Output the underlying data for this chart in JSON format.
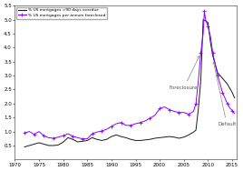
{
  "xlim": [
    1970,
    2016
  ],
  "ylim": [
    0.0,
    5.5
  ],
  "xticks": [
    1970,
    1975,
    1980,
    1985,
    1990,
    1995,
    2000,
    2005,
    2010,
    2015
  ],
  "ytick_vals": [
    0.5,
    1.0,
    1.5,
    2.0,
    2.5,
    3.0,
    3.5,
    4.0,
    4.5,
    5.0,
    5.5
  ],
  "ytick_labels": [
    "0.5",
    "1.0",
    "1.5",
    "2.0",
    "2.5",
    "3.0",
    "3.5",
    "4.0",
    "4.5",
    "5.0",
    "5.5"
  ],
  "legend1": "% US mortgages >90 days overdue",
  "legend2": "% US mortgages per annum foreclosed",
  "annotation_foreclosure": "Foreclosure",
  "annotation_default": "Default",
  "color_default": "#1a1a1a",
  "color_foreclosure": "#8B00FF",
  "background": "#ffffff",
  "default_x": [
    1972,
    1973,
    1974,
    1975,
    1976,
    1977,
    1978,
    1979,
    1980,
    1981,
    1982,
    1983,
    1984,
    1985,
    1986,
    1987,
    1988,
    1989,
    1990,
    1991,
    1992,
    1993,
    1994,
    1995,
    1996,
    1997,
    1998,
    1999,
    2000,
    2001,
    2002,
    2003,
    2004,
    2005,
    2006,
    2007,
    2007.5,
    2008,
    2008.5,
    2009,
    2009.5,
    2010,
    2010.5,
    2011,
    2011.5,
    2012,
    2012.5,
    2013,
    2013.5,
    2014,
    2014.5,
    2015,
    2015.5
  ],
  "default_y": [
    0.45,
    0.5,
    0.55,
    0.6,
    0.55,
    0.5,
    0.5,
    0.52,
    0.62,
    0.78,
    0.72,
    0.63,
    0.65,
    0.68,
    0.78,
    0.72,
    0.68,
    0.72,
    0.82,
    0.88,
    0.82,
    0.78,
    0.72,
    0.68,
    0.68,
    0.7,
    0.72,
    0.76,
    0.78,
    0.8,
    0.82,
    0.8,
    0.76,
    0.8,
    0.88,
    0.98,
    1.05,
    1.8,
    2.8,
    5.0,
    4.95,
    4.9,
    4.2,
    3.7,
    3.4,
    3.1,
    3.0,
    2.9,
    2.8,
    2.7,
    2.55,
    2.4,
    2.2
  ],
  "foreclosure_x": [
    1972,
    1973,
    1974,
    1975,
    1976,
    1977,
    1978,
    1979,
    1980,
    1981,
    1982,
    1983,
    1984,
    1985,
    1986,
    1987,
    1988,
    1989,
    1990,
    1991,
    1992,
    1993,
    1994,
    1995,
    1996,
    1997,
    1998,
    1999,
    2000,
    2001,
    2002,
    2003,
    2004,
    2005,
    2006,
    2007,
    2007.5,
    2008,
    2008.5,
    2009,
    2009.25,
    2009.5,
    2010,
    2010.5,
    2011,
    2011.5,
    2012,
    2012.5,
    2013,
    2013.5,
    2014,
    2014.5,
    2015,
    2015.5
  ],
  "foreclosure_y": [
    0.95,
    1.0,
    0.9,
    1.0,
    0.85,
    0.78,
    0.76,
    0.8,
    0.85,
    0.92,
    0.83,
    0.78,
    0.74,
    0.74,
    0.92,
    0.98,
    1.02,
    1.08,
    1.18,
    1.28,
    1.32,
    1.22,
    1.22,
    1.28,
    1.32,
    1.38,
    1.48,
    1.58,
    1.82,
    1.88,
    1.78,
    1.72,
    1.68,
    1.68,
    1.62,
    1.72,
    2.0,
    2.8,
    3.8,
    4.5,
    5.3,
    5.0,
    4.75,
    4.4,
    3.8,
    3.4,
    3.0,
    2.7,
    2.4,
    2.2,
    2.0,
    1.85,
    1.75,
    1.65
  ]
}
